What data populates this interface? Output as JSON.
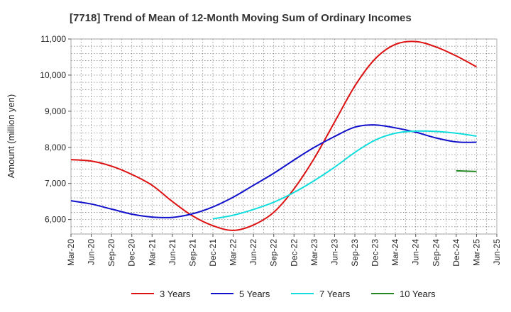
{
  "chart_data": {
    "type": "line",
    "title": "[7718]  Trend of Mean of 12-Month Moving Sum of Ordinary Incomes",
    "xlabel": "",
    "ylabel": "Amount (million yen)",
    "ylim": [
      5600,
      11000
    ],
    "yticks": [
      6000,
      7000,
      8000,
      9000,
      10000,
      11000
    ],
    "ytick_labels": [
      "6,000",
      "7,000",
      "8,000",
      "9,000",
      "10,000",
      "11,000"
    ],
    "categories": [
      "Mar-20",
      "Jun-20",
      "Sep-20",
      "Dec-20",
      "Mar-21",
      "Jun-21",
      "Sep-21",
      "Dec-21",
      "Mar-22",
      "Jun-22",
      "Sep-22",
      "Dec-22",
      "Mar-23",
      "Jun-23",
      "Sep-23",
      "Dec-23",
      "Mar-24",
      "Jun-24",
      "Sep-24",
      "Dec-24",
      "Mar-25",
      "Jun-25"
    ],
    "grid": true,
    "legend_position": "bottom",
    "series": [
      {
        "name": "3 Years",
        "color": "#dd1111",
        "values": [
          7660,
          7620,
          7480,
          7250,
          6950,
          6500,
          6100,
          5830,
          5700,
          5850,
          6200,
          6850,
          7700,
          8700,
          9700,
          10450,
          10850,
          10930,
          10780,
          10530,
          10230,
          null
        ]
      },
      {
        "name": "5 Years",
        "color": "#1111cc",
        "values": [
          6520,
          6430,
          6290,
          6150,
          6070,
          6060,
          6160,
          6350,
          6620,
          6950,
          7280,
          7650,
          8000,
          8300,
          8560,
          8620,
          8540,
          8420,
          8260,
          8150,
          8140,
          null
        ]
      },
      {
        "name": "7 Years",
        "color": "#11dddd",
        "values": [
          null,
          null,
          null,
          null,
          null,
          null,
          null,
          6020,
          6120,
          6280,
          6480,
          6750,
          7080,
          7450,
          7860,
          8200,
          8390,
          8450,
          8440,
          8390,
          8310,
          null
        ]
      },
      {
        "name": "10 Years",
        "color": "#228822",
        "values": [
          null,
          null,
          null,
          null,
          null,
          null,
          null,
          null,
          null,
          null,
          null,
          null,
          null,
          null,
          null,
          null,
          null,
          null,
          null,
          7350,
          7330,
          null
        ]
      }
    ]
  }
}
